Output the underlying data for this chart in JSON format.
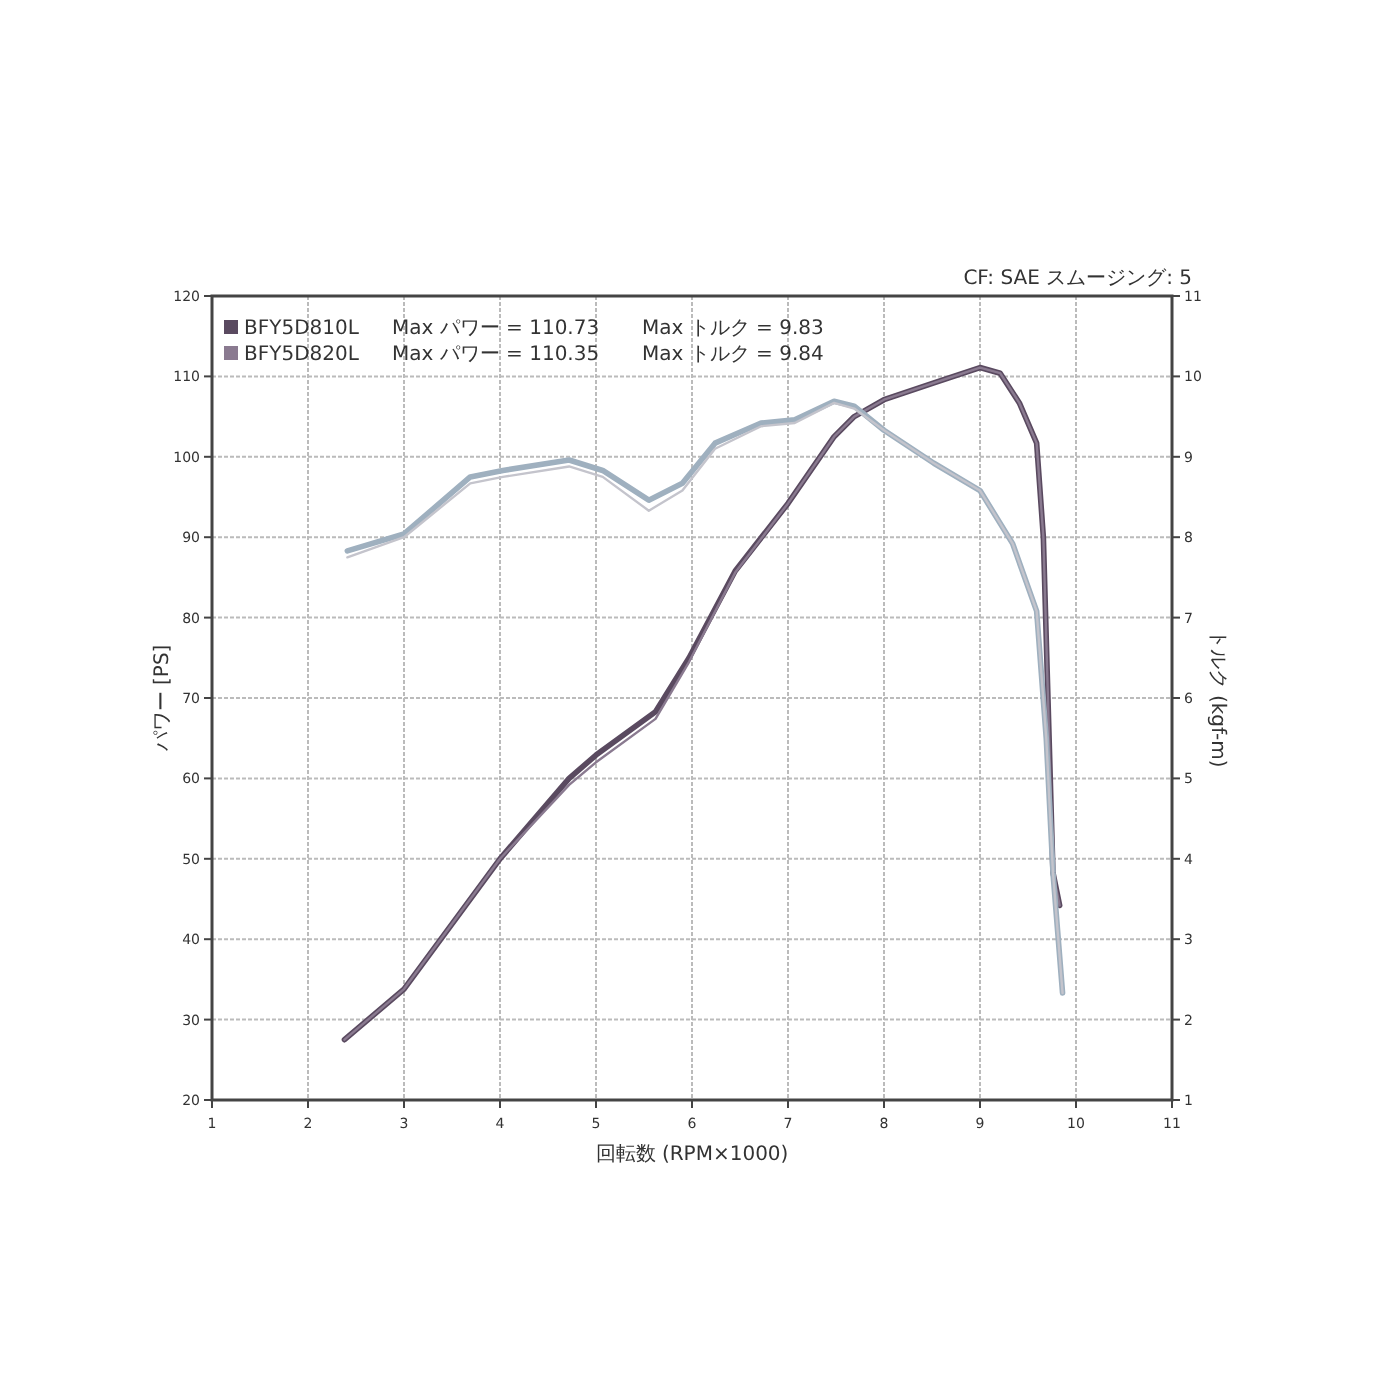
{
  "chart_data": {
    "type": "line",
    "xlabel": "回転数 (RPM×1000)",
    "ylabel": "パワー [PS]",
    "y2label": "トルク (kgf-m)",
    "annotations": [
      "Max パワー = 110.73",
      "Max トルク = 9.83",
      "Max パワー = 110.35",
      "Max トルク = 9.84",
      "CF: SAE  スムージング: 5"
    ],
    "xlim": [
      1,
      11
    ],
    "xticks": [
      1,
      2,
      3,
      4,
      5,
      6,
      7,
      8,
      9,
      10,
      11
    ],
    "ylim": [
      20,
      120
    ],
    "yticks": [
      20,
      30,
      40,
      50,
      60,
      70,
      80,
      90,
      100,
      110,
      120
    ],
    "y2lim": [
      1,
      11
    ],
    "y2ticks": [
      1,
      2,
      3,
      4,
      5,
      6,
      7,
      8,
      9,
      10,
      11
    ],
    "grid": true,
    "legend": "top left",
    "marker": "none",
    "line_style": "solid",
    "series": [
      {
        "name": "BFY5D810L",
        "color": "#5a4a60",
        "x": [
          2.38,
          3.0,
          4.0,
          4.72,
          5.0,
          5.62,
          5.97,
          6.45,
          7.0,
          7.48,
          7.69,
          8.0,
          8.52,
          9.0,
          9.21,
          9.41,
          9.59,
          9.66,
          9.7,
          9.76,
          9.83
        ],
        "values": [
          27.5,
          33.8,
          50,
          60,
          62.9,
          68.3,
          75,
          85.8,
          94.2,
          102.5,
          105,
          107.1,
          109.2,
          111.1,
          110.4,
          106.7,
          101.7,
          90,
          73.3,
          48.3,
          44.2
        ]
      },
      {
        "name": "BFY5D820L",
        "color": "#8a7a90",
        "x": [
          2.38,
          3.0,
          4.0,
          4.72,
          5.0,
          5.62,
          5.97,
          6.45,
          7.0,
          7.48,
          7.69,
          8.0,
          8.52,
          9.0,
          9.21,
          9.41,
          9.59,
          9.66,
          9.7,
          9.76,
          9.83
        ],
        "values": [
          27.5,
          33.8,
          50,
          59.2,
          62,
          67.4,
          74.5,
          85.6,
          94.2,
          102.5,
          105,
          107.1,
          109.2,
          111.1,
          110.4,
          106.7,
          101.7,
          90,
          73.3,
          48.3,
          44.2
        ]
      },
      {
        "axis": "y2",
        "color": "#9fb0bf",
        "x": [
          2.41,
          3.0,
          3.69,
          4.03,
          4.72,
          5.07,
          5.55,
          5.9,
          6.24,
          6.72,
          7.07,
          7.48,
          7.69,
          8.0,
          8.52,
          9.0,
          9.34,
          9.59,
          9.69,
          9.76,
          9.86
        ],
        "values": [
          7.83,
          8.04,
          8.75,
          8.83,
          8.96,
          8.83,
          8.46,
          8.67,
          9.17,
          9.42,
          9.46,
          9.69,
          9.63,
          9.33,
          8.92,
          8.58,
          7.92,
          7.08,
          5.5,
          3.83,
          2.33
        ]
      },
      {
        "axis": "y2",
        "color": "#c4c4cc",
        "x": [
          2.41,
          3.0,
          3.69,
          4.03,
          4.72,
          5.07,
          5.55,
          5.9,
          6.24,
          6.72,
          7.07,
          7.48,
          7.69,
          8.0,
          8.52,
          9.0,
          9.34,
          9.59,
          9.69,
          9.76,
          9.86
        ],
        "values": [
          7.75,
          8.0,
          8.67,
          8.75,
          8.88,
          8.75,
          8.33,
          8.58,
          9.1,
          9.38,
          9.42,
          9.67,
          9.6,
          9.33,
          8.92,
          8.58,
          7.92,
          7.08,
          5.5,
          3.83,
          2.33
        ]
      }
    ]
  }
}
